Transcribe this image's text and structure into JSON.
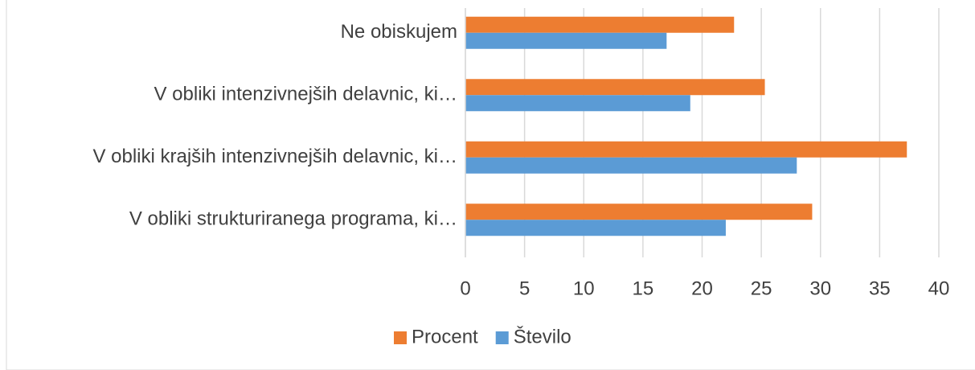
{
  "chart_data": {
    "type": "bar",
    "orientation": "horizontal",
    "categories": [
      "Ne obiskujem",
      "V obliki intenzivnejših delavnic, ki…",
      "V obliki krajših intenzivnejših delavnic, ki…",
      "V obliki strukturiranega programa, ki…"
    ],
    "series": [
      {
        "name": "Procent",
        "color": "#ed7d31",
        "values": [
          22.7,
          25.3,
          37.3,
          29.3
        ]
      },
      {
        "name": "Število",
        "color": "#5b9bd5",
        "values": [
          17,
          19,
          28,
          22
        ]
      }
    ],
    "xlim": [
      0,
      40
    ],
    "xticks": [
      0,
      5,
      10,
      15,
      20,
      25,
      30,
      35,
      40
    ],
    "grid": true,
    "legend": "bottom"
  }
}
